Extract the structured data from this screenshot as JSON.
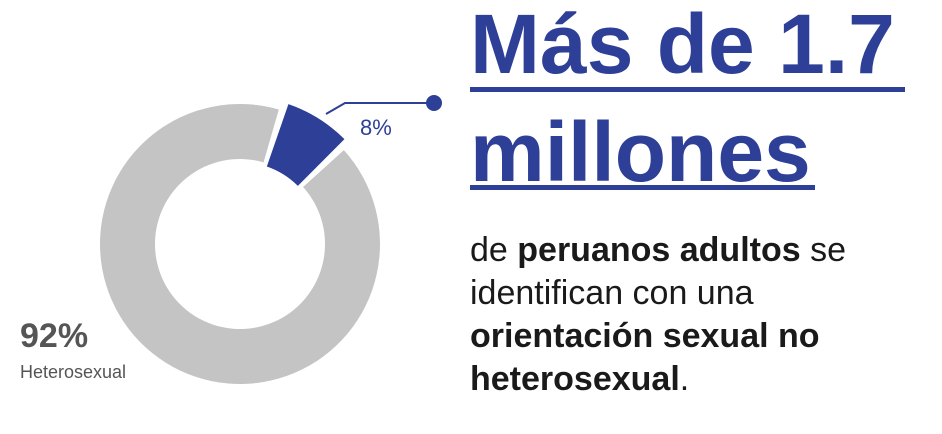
{
  "headline": {
    "line1": "Más de 1.7",
    "line2": "millones"
  },
  "body": {
    "part1": "de ",
    "bold1": "peruanos adultos",
    "part2": " se identifican con una ",
    "bold2": "orientación sexual no heterosexual",
    "part3": "."
  },
  "colors": {
    "accent": "#2e3f97",
    "neutral": "#c4c4c4"
  },
  "chart_data": {
    "type": "pie",
    "slices": [
      {
        "label": "Heterosexual",
        "value": 92,
        "value_label": "92%",
        "color": "#c4c4c4"
      },
      {
        "label": "",
        "value": 8,
        "value_label": "8%",
        "color": "#2e3f97"
      }
    ]
  }
}
